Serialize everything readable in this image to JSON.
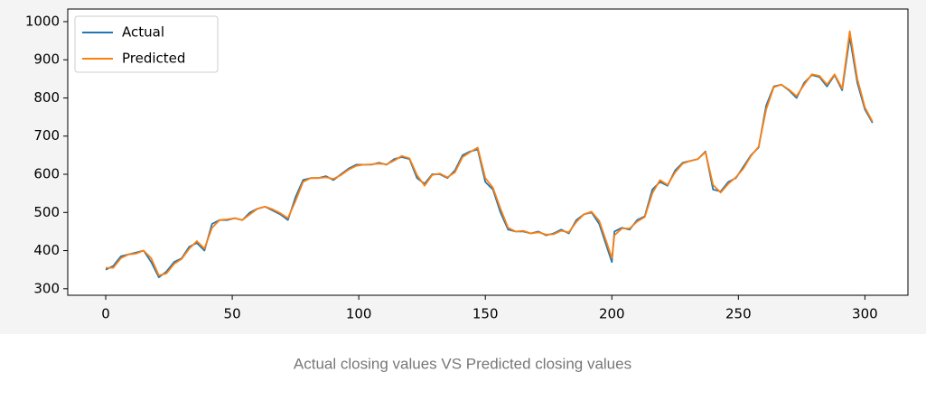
{
  "chart_data": {
    "type": "line",
    "x": [
      0,
      3,
      6,
      9,
      12,
      15,
      18,
      21,
      24,
      27,
      30,
      33,
      36,
      39,
      42,
      45,
      48,
      51,
      54,
      57,
      60,
      63,
      66,
      69,
      72,
      75,
      78,
      81,
      84,
      87,
      90,
      93,
      96,
      99,
      102,
      105,
      108,
      111,
      114,
      117,
      120,
      123,
      126,
      129,
      132,
      135,
      138,
      141,
      144,
      147,
      150,
      153,
      156,
      159,
      162,
      165,
      168,
      171,
      174,
      177,
      180,
      183,
      186,
      189,
      192,
      195,
      198,
      200,
      201,
      204,
      207,
      210,
      213,
      216,
      219,
      222,
      225,
      228,
      231,
      234,
      237,
      240,
      243,
      246,
      249,
      252,
      255,
      258,
      261,
      264,
      267,
      270,
      273,
      276,
      279,
      282,
      285,
      288,
      291,
      294,
      297,
      300,
      303
    ],
    "series": [
      {
        "name": "Actual",
        "color": "#1f77b4",
        "values": [
          350,
          360,
          385,
          390,
          395,
          400,
          370,
          330,
          345,
          370,
          380,
          410,
          420,
          400,
          470,
          480,
          480,
          485,
          480,
          500,
          510,
          515,
          505,
          495,
          480,
          540,
          585,
          590,
          590,
          595,
          585,
          600,
          615,
          625,
          625,
          625,
          630,
          625,
          640,
          645,
          640,
          590,
          575,
          600,
          600,
          590,
          610,
          650,
          660,
          665,
          580,
          560,
          500,
          455,
          450,
          450,
          445,
          450,
          440,
          445,
          455,
          445,
          480,
          495,
          500,
          470,
          410,
          370,
          450,
          460,
          455,
          480,
          490,
          560,
          580,
          570,
          610,
          630,
          635,
          640,
          660,
          560,
          555,
          580,
          590,
          620,
          650,
          670,
          780,
          830,
          835,
          820,
          800,
          840,
          860,
          855,
          830,
          860,
          820,
          960,
          840,
          770,
          735
        ]
      },
      {
        "name": "Predicted",
        "color": "#ff7f0e",
        "values": [
          355,
          355,
          380,
          390,
          392,
          400,
          380,
          335,
          340,
          365,
          378,
          405,
          425,
          405,
          460,
          480,
          482,
          485,
          480,
          495,
          510,
          515,
          508,
          498,
          485,
          530,
          580,
          590,
          590,
          592,
          588,
          598,
          612,
          622,
          625,
          626,
          628,
          626,
          636,
          648,
          642,
          598,
          570,
          598,
          602,
          592,
          605,
          645,
          658,
          670,
          590,
          565,
          510,
          460,
          450,
          452,
          445,
          448,
          442,
          443,
          452,
          448,
          475,
          495,
          502,
          478,
          420,
          380,
          440,
          458,
          458,
          476,
          488,
          550,
          585,
          572,
          605,
          628,
          635,
          640,
          658,
          572,
          552,
          575,
          592,
          615,
          648,
          672,
          770,
          828,
          835,
          822,
          805,
          835,
          862,
          858,
          835,
          862,
          825,
          975,
          850,
          775,
          738
        ]
      }
    ],
    "xlim": [
      -15,
      317
    ],
    "xticks": [
      0,
      50,
      100,
      150,
      200,
      250,
      300
    ],
    "ylim": [
      283,
      1033
    ],
    "yticks": [
      300,
      400,
      500,
      600,
      700,
      800,
      900,
      1000
    ],
    "legend": "upper-left"
  },
  "caption": "Actual closing values VS Predicted closing values"
}
